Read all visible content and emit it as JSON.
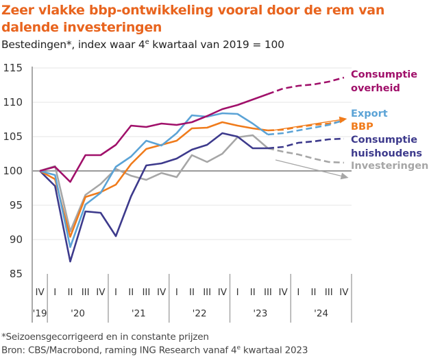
{
  "title": "Zeer vlakke bbp-ontwikkeling vooral door de rem van dalende investeringen",
  "subtitle_pre": "Bestedingen*, index waar 4",
  "subtitle_sup": "e",
  "subtitle_post": " kwartaal van 2019 = 100",
  "footnote1": "*Seizoensgecorrigeerd en in constante prijzen",
  "footnote2_pre": "Bron: CBS/Macrobond, raming ING Research vanaf 4",
  "footnote2_sup": "e",
  "footnote2_post": " kwartaal 2023",
  "chart_data": {
    "type": "line",
    "title": "Zeer vlakke bbp-ontwikkeling vooral door de rem van dalende investeringen",
    "subtitle": "Bestedingen*, index waar 4e kwartaal van 2019 = 100",
    "xlabel": "",
    "ylabel": "",
    "ylim": [
      85,
      115
    ],
    "yticks": [
      85,
      90,
      95,
      100,
      105,
      110,
      115
    ],
    "grid": true,
    "baseline": 100,
    "x": [
      "IV'19",
      "I'20",
      "II'20",
      "III'20",
      "IV'20",
      "I'21",
      "II'21",
      "III'21",
      "IV'21",
      "I'22",
      "II'22",
      "III'22",
      "IV'22",
      "I'23",
      "II'23",
      "III'23",
      "IV'23",
      "I'24",
      "II'24",
      "III'24",
      "IV'24"
    ],
    "quarter_labels": [
      "IV",
      "I",
      "II",
      "III",
      "IV",
      "I",
      "II",
      "III",
      "IV",
      "I",
      "II",
      "III",
      "IV",
      "I",
      "II",
      "III",
      "IV",
      "I",
      "II",
      "III",
      "IV"
    ],
    "year_groups": [
      {
        "label": "'19",
        "start": 0,
        "end": 0
      },
      {
        "label": "'20",
        "start": 1,
        "end": 4
      },
      {
        "label": "'21",
        "start": 5,
        "end": 8
      },
      {
        "label": "'22",
        "start": 9,
        "end": 12
      },
      {
        "label": "'23",
        "start": 13,
        "end": 16
      },
      {
        "label": "'24",
        "start": 17,
        "end": 20
      }
    ],
    "forecast_start_index": 15,
    "legend_placement": "right",
    "series": [
      {
        "name": "Consumptie overheid",
        "label_lines": [
          "Consumptie",
          "overheid"
        ],
        "color": "#A0106A",
        "values": [
          100,
          100.6,
          98.4,
          102.3,
          102.3,
          103.8,
          106.6,
          106.4,
          106.9,
          106.7,
          107.1,
          108.0,
          109.0,
          109.6,
          110.4,
          111.2,
          112.0,
          112.4,
          112.6,
          113.0,
          113.6
        ]
      },
      {
        "name": "Export",
        "label_lines": [
          "Export"
        ],
        "color": "#5BA3D6",
        "values": [
          100,
          99.4,
          88.9,
          95.1,
          96.8,
          100.6,
          102.1,
          104.4,
          103.7,
          105.5,
          108.1,
          107.9,
          108.4,
          108.3,
          106.9,
          105.3,
          105.5,
          105.9,
          106.3,
          106.7,
          107.4
        ]
      },
      {
        "name": "BBP",
        "label_lines": [
          "BBP"
        ],
        "color": "#F07B1B",
        "values": [
          100,
          98.8,
          90.4,
          96.2,
          96.9,
          98.0,
          101.0,
          103.2,
          103.8,
          104.4,
          106.2,
          106.3,
          107.1,
          106.6,
          106.2,
          105.9,
          106.0,
          106.4,
          106.7,
          106.9,
          107.3
        ]
      },
      {
        "name": "Consumptie huishoudens",
        "label_lines": [
          "Consumptie",
          "huishoudens"
        ],
        "color": "#3D3A8C",
        "values": [
          100,
          97.8,
          86.8,
          94.1,
          93.9,
          90.5,
          96.3,
          100.8,
          101.1,
          101.8,
          103.1,
          103.8,
          105.5,
          105.0,
          103.3,
          103.3,
          103.5,
          104.1,
          104.3,
          104.6,
          104.7
        ]
      },
      {
        "name": "Investeringen",
        "label_lines": [
          "Investeringen"
        ],
        "color": "#A6A6A6",
        "values": [
          100,
          100.7,
          91.2,
          96.5,
          98.1,
          100.3,
          99.3,
          98.7,
          99.7,
          99.1,
          102.3,
          101.3,
          102.5,
          104.9,
          105.2,
          103.3,
          102.8,
          102.4,
          101.8,
          101.3,
          101.2
        ]
      }
    ],
    "annotations": [
      {
        "type": "arrow",
        "meaning": "upward trend",
        "color": "#F07B1B",
        "from": [
          15.3,
          105.9
        ],
        "to": [
          20.2,
          107.6
        ]
      },
      {
        "type": "arrow",
        "meaning": "downward trend",
        "color": "#A6A6A6",
        "from": [
          15.5,
          101.6
        ],
        "to": [
          20.3,
          99.0
        ]
      }
    ]
  }
}
